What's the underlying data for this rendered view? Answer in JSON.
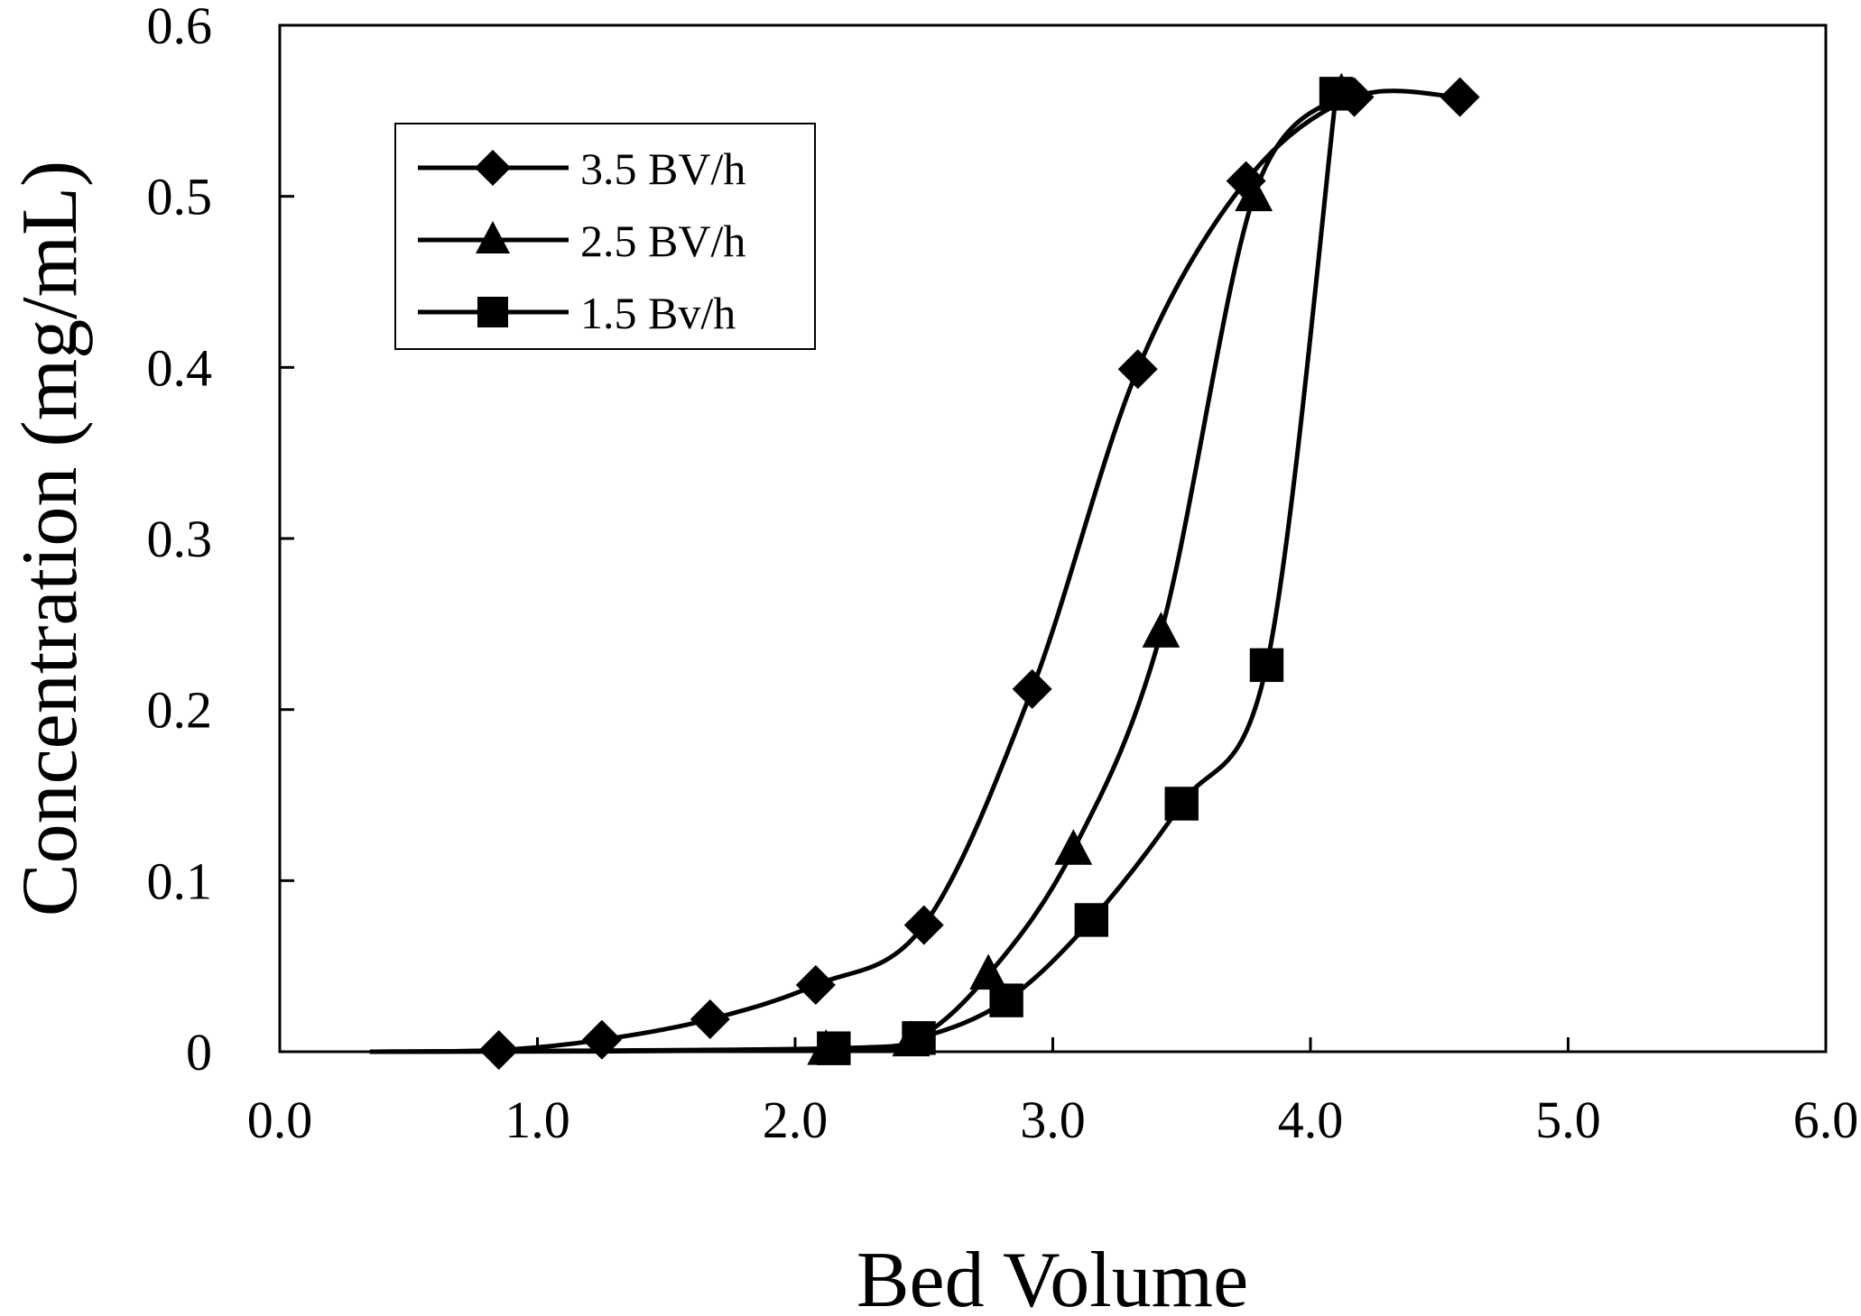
{
  "chart_data": {
    "type": "line",
    "title": "",
    "xlabel": "Bed Volume",
    "ylabel": "Concentration (mg/mL)",
    "xlim": [
      0.0,
      6.0
    ],
    "ylim": [
      0,
      0.6
    ],
    "x_ticks": [
      "0.0",
      "1.0",
      "2.0",
      "3.0",
      "4.0",
      "5.0",
      "6.0"
    ],
    "y_ticks": [
      "0",
      "0.1",
      "0.2",
      "0.3",
      "0.4",
      "0.5",
      "0.6"
    ],
    "grid": false,
    "legend_position": "top-left",
    "series": [
      {
        "name": "3.5 BV/h",
        "marker": "diamond",
        "curve_start": [
          0.35,
          0.0
        ],
        "x": [
          0.85,
          1.25,
          1.67,
          2.08,
          2.5,
          2.92,
          3.33,
          3.75,
          4.17,
          4.58
        ],
        "y": [
          0.001,
          0.007,
          0.019,
          0.039,
          0.074,
          0.212,
          0.399,
          0.509,
          0.558,
          0.558
        ]
      },
      {
        "name": "2.5 BV/h",
        "marker": "triangle",
        "curve_start": [
          0.35,
          0.0
        ],
        "x": [
          2.12,
          2.45,
          2.75,
          3.08,
          3.42,
          3.78,
          4.12
        ],
        "y": [
          0.001,
          0.006,
          0.045,
          0.118,
          0.245,
          0.5,
          0.56
        ]
      },
      {
        "name": "1.5 Bv/h",
        "marker": "square",
        "curve_start": [
          0.35,
          0.0
        ],
        "x": [
          2.15,
          2.48,
          2.82,
          3.15,
          3.5,
          3.83,
          4.1
        ],
        "y": [
          0.002,
          0.008,
          0.03,
          0.077,
          0.145,
          0.226,
          0.56
        ]
      }
    ]
  }
}
